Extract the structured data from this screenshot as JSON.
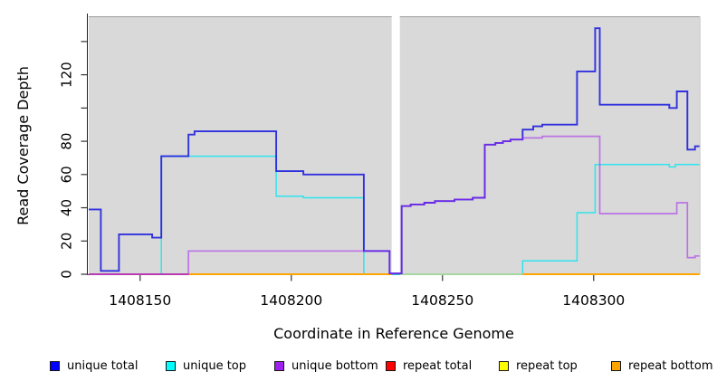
{
  "chart_data": {
    "type": "line",
    "title": "",
    "xlabel": "Coordinate in Reference Genome",
    "ylabel": "Read Coverage Depth",
    "x_range": [
      1408133,
      1408335
    ],
    "y_range": [
      0,
      155.2
    ],
    "grid": false,
    "panel_color": "#d9d9d9",
    "panel_edge_color": "#9b9b9b",
    "gap_region": [
      1408233.2,
      1408235.9
    ],
    "x_ticks": [
      {
        "coord": 1408150,
        "label": "1408150"
      },
      {
        "coord": 1408200,
        "label": "1408200"
      },
      {
        "coord": 1408250,
        "label": "1408250"
      },
      {
        "coord": 1408300,
        "label": "1408300"
      }
    ],
    "y_ticks": [
      {
        "value": 0,
        "label": "0"
      },
      {
        "value": 20,
        "label": "20"
      },
      {
        "value": 40,
        "label": "40"
      },
      {
        "value": 60,
        "label": "60"
      },
      {
        "value": 80,
        "label": "80"
      },
      {
        "value": 100,
        "label": ""
      },
      {
        "value": 120,
        "label": "120"
      },
      {
        "value": 140,
        "label": ""
      }
    ],
    "series": [
      {
        "name": "unique top",
        "color": "#2fe4ee",
        "opacity": 1,
        "width": 1.5,
        "steps": [
          [
            1408133,
            0
          ],
          [
            1408157,
            71
          ],
          [
            1408195,
            47
          ],
          [
            1408204,
            46
          ],
          [
            1408224,
            0
          ],
          [
            1408276.5,
            8
          ],
          [
            1408294.5,
            37
          ],
          [
            1408300.5,
            66
          ],
          [
            1408325,
            64.5
          ],
          [
            1408327,
            66
          ],
          [
            1408335,
            66
          ]
        ]
      },
      {
        "name": "unique total",
        "color": "#2323de",
        "opacity": 0.92,
        "width": 1.9,
        "steps": [
          [
            1408133,
            39
          ],
          [
            1408137,
            2
          ],
          [
            1408143,
            24
          ],
          [
            1408154,
            22
          ],
          [
            1408157,
            71
          ],
          [
            1408166,
            84
          ],
          [
            1408168,
            86
          ],
          [
            1408195,
            62
          ],
          [
            1408204,
            60
          ],
          [
            1408224,
            14
          ],
          [
            1408232.5,
            0.5
          ],
          [
            1408236.5,
            41
          ],
          [
            1408239.5,
            42
          ],
          [
            1408244,
            43
          ],
          [
            1408247.5,
            44
          ],
          [
            1408254,
            45
          ],
          [
            1408260,
            46
          ],
          [
            1408264,
            78
          ],
          [
            1408267.5,
            79
          ],
          [
            1408270,
            80
          ],
          [
            1408272.5,
            81
          ],
          [
            1408276.5,
            87
          ],
          [
            1408280,
            89
          ],
          [
            1408283,
            90
          ],
          [
            1408294.5,
            122
          ],
          [
            1408300.5,
            148
          ],
          [
            1408302,
            102
          ],
          [
            1408325,
            100
          ],
          [
            1408327.5,
            110
          ],
          [
            1408331,
            75
          ],
          [
            1408333.5,
            77
          ],
          [
            1408335,
            77
          ]
        ]
      },
      {
        "name": "unique bottom",
        "color": "#a020f0",
        "opacity": 0.55,
        "width": 1.7,
        "steps": [
          [
            1408133,
            0
          ],
          [
            1408166,
            14
          ],
          [
            1408224,
            14
          ],
          [
            1408232.5,
            0.5
          ],
          [
            1408236.5,
            41
          ],
          [
            1408239.5,
            42
          ],
          [
            1408244,
            43
          ],
          [
            1408247.5,
            44
          ],
          [
            1408254,
            45
          ],
          [
            1408260,
            46
          ],
          [
            1408264,
            78
          ],
          [
            1408267.5,
            79
          ],
          [
            1408270,
            80
          ],
          [
            1408272.5,
            81
          ],
          [
            1408276.5,
            82
          ],
          [
            1408283,
            83
          ],
          [
            1408302,
            36.5
          ],
          [
            1408327.5,
            43
          ],
          [
            1408331,
            10
          ],
          [
            1408333.5,
            11
          ],
          [
            1408335,
            11
          ]
        ]
      }
    ],
    "baseline_segments": [
      {
        "name": "repeat total",
        "color": "#cc5577",
        "value": 0,
        "from": 1408133,
        "to": 1408166
      },
      {
        "name": "repeat bottom",
        "color": "#ffa500",
        "value": 0,
        "from": 1408166,
        "to": 1408233.2
      },
      {
        "name": "repeat top",
        "color": "#a6d7a0",
        "value": 0,
        "from": 1408235.9,
        "to": 1408276.5
      },
      {
        "name": "repeat bottom",
        "color": "#ffa500",
        "value": 0,
        "from": 1408276.5,
        "to": 1408335
      }
    ]
  },
  "legend": {
    "items": [
      {
        "label": "unique total",
        "color": "#0000ff"
      },
      {
        "label": "unique top",
        "color": "#00ffff"
      },
      {
        "label": "unique bottom",
        "color": "#a020f0"
      },
      {
        "label": "repeat total",
        "color": "#ff0000"
      },
      {
        "label": "repeat top",
        "color": "#ffff00"
      },
      {
        "label": "repeat bottom",
        "color": "#ffa500"
      }
    ]
  }
}
